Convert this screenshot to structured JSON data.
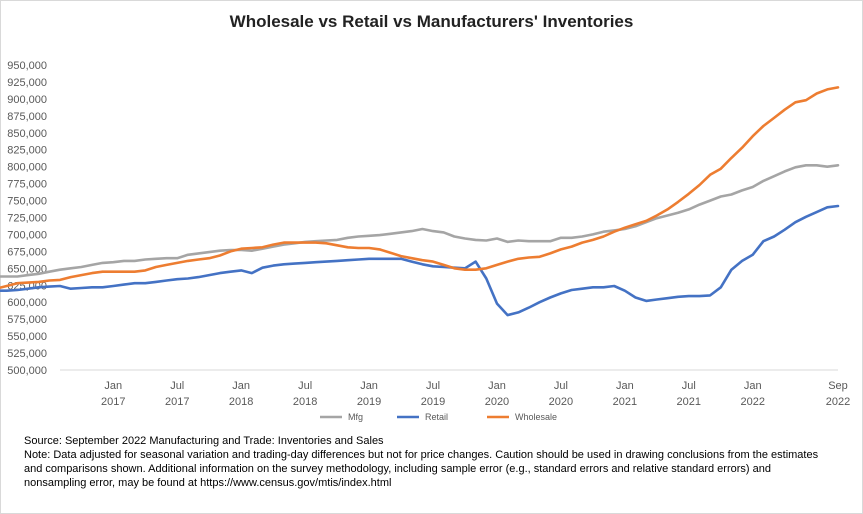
{
  "chart_data": {
    "type": "line",
    "title": "Wholesale vs Retail vs Manufacturers' Inventories",
    "xlabel": "",
    "ylabel": "",
    "ylim": [
      500000,
      950000
    ],
    "y_ticks": [
      500000,
      525000,
      550000,
      575000,
      600000,
      625000,
      650000,
      675000,
      700000,
      725000,
      750000,
      775000,
      800000,
      825000,
      850000,
      875000,
      900000,
      925000,
      950000
    ],
    "y_tick_labels": [
      "500,000",
      "525,000",
      "550,000",
      "575,000",
      "600,000",
      "625,000",
      "650,000",
      "675,000",
      "700,000",
      "725,000",
      "750,000",
      "775,000",
      "800,000",
      "825,000",
      "850,000",
      "875,000",
      "900,000",
      "925,000",
      "950,000"
    ],
    "x_start": "Aug 2016",
    "x_end": "Sep 2022",
    "x_ticks": [
      {
        "month": "Jan",
        "year": "2017",
        "date": "2017-01"
      },
      {
        "month": "Jul",
        "year": "2017",
        "date": "2017-07"
      },
      {
        "month": "Jan",
        "year": "2018",
        "date": "2018-01"
      },
      {
        "month": "Jul",
        "year": "2018",
        "date": "2018-07"
      },
      {
        "month": "Jan",
        "year": "2019",
        "date": "2019-01"
      },
      {
        "month": "Jul",
        "year": "2019",
        "date": "2019-07"
      },
      {
        "month": "Jan",
        "year": "2020",
        "date": "2020-01"
      },
      {
        "month": "Jul",
        "year": "2020",
        "date": "2020-07"
      },
      {
        "month": "Jan",
        "year": "2021",
        "date": "2021-01"
      },
      {
        "month": "Jul",
        "year": "2021",
        "date": "2021-07"
      },
      {
        "month": "Jan",
        "year": "2022",
        "date": "2022-01"
      },
      {
        "month": "Sep",
        "year": "2022",
        "date": "2022-09"
      }
    ],
    "grid": false,
    "legend": "bottom",
    "series": [
      {
        "name": "Mfg",
        "color": "#a5a5a5",
        "values": [
          631000,
          631000,
          632000,
          634000,
          635000,
          636000,
          637000,
          638000,
          638000,
          638000,
          638000,
          638000,
          638000,
          640000,
          642000,
          645000,
          648000,
          650000,
          652000,
          655000,
          658000,
          659000,
          661000,
          661000,
          663000,
          664000,
          665000,
          665000,
          670000,
          672000,
          674000,
          676000,
          677000,
          677000,
          676000,
          679000,
          682000,
          685000,
          687000,
          689000,
          690000,
          691000,
          692000,
          695000,
          697000,
          698000,
          699000,
          701000,
          703000,
          705000,
          708000,
          705000,
          703000,
          697000,
          694000,
          692000,
          691000,
          694000,
          689000,
          691000,
          690000,
          690000,
          690000,
          695000,
          695000,
          697000,
          700000,
          704000,
          706000,
          708000,
          712000,
          718000,
          724000,
          728000,
          732000,
          737000,
          744000,
          750000,
          756000,
          759000,
          765000,
          770000,
          779000,
          786000,
          793000,
          799000,
          802000,
          802000,
          800000,
          802000
        ]
      },
      {
        "name": "Retail",
        "color": "#4472c4",
        "values": [
          607000,
          607000,
          610000,
          612000,
          614000,
          615000,
          617000,
          617000,
          618000,
          620000,
          622000,
          623000,
          624000,
          620000,
          621000,
          622000,
          622000,
          624000,
          626000,
          628000,
          628000,
          630000,
          632000,
          634000,
          635000,
          637000,
          640000,
          643000,
          645000,
          647000,
          643000,
          651000,
          654000,
          656000,
          657000,
          658000,
          659000,
          660000,
          661000,
          662000,
          663000,
          664000,
          664000,
          664000,
          664000,
          660000,
          656000,
          653000,
          652000,
          651000,
          650000,
          660000,
          635000,
          598000,
          581000,
          585000,
          592000,
          600000,
          607000,
          613000,
          618000,
          620000,
          622000,
          622000,
          624000,
          617000,
          607000,
          602000,
          604000,
          606000,
          608000,
          609000,
          609000,
          610000,
          622000,
          648000,
          661000,
          670000,
          690000,
          697000,
          707000,
          718000,
          726000,
          733000,
          740000,
          742000
        ]
      },
      {
        "name": "Wholesale",
        "color": "#ed7d31",
        "values": [
          603000,
          603000,
          608000,
          610000,
          612000,
          612000,
          613000,
          613000,
          613000,
          614000,
          617000,
          620000,
          624000,
          628000,
          629000,
          630000,
          632000,
          633000,
          637000,
          640000,
          643000,
          645000,
          645000,
          645000,
          645000,
          647000,
          652000,
          655000,
          658000,
          661000,
          663000,
          665000,
          669000,
          675000,
          679000,
          680000,
          681000,
          685000,
          688000,
          688000,
          688000,
          688000,
          687000,
          684000,
          681000,
          680000,
          680000,
          678000,
          673000,
          668000,
          665000,
          662000,
          660000,
          655000,
          650000,
          648000,
          648000,
          650000,
          655000,
          660000,
          664000,
          666000,
          667000,
          672000,
          678000,
          682000,
          688000,
          692000,
          697000,
          704000,
          710000,
          715000,
          720000,
          728000,
          737000,
          748000,
          760000,
          773000,
          788000,
          797000,
          813000,
          828000,
          845000,
          860000,
          872000,
          884000,
          895000,
          898000,
          908000,
          914000,
          917000
        ]
      }
    ]
  },
  "notes": {
    "source": "Source: September 2022 Manufacturing and Trade: Inventories and Sales",
    "line1": "Note: Data adjusted for seasonal variation and trading-day differences but not for price changes. Caution should be used in drawing conclusions from the estimates",
    "line2": "and comparisons shown. Additional information on the survey methodology, including sample error (e.g., standard errors and relative standard errors) and",
    "line3": "nonsampling error, may be found at https://www.census.gov/mtis/index.html"
  }
}
